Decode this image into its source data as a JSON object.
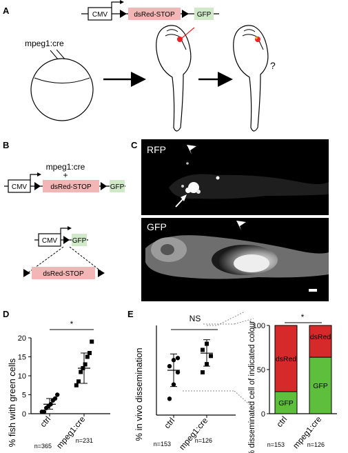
{
  "panel_labels": {
    "a": "A",
    "b": "B",
    "c": "C",
    "d": "D",
    "e": "E"
  },
  "panel_a": {
    "construct": {
      "promoter": "CMV",
      "stop": "dsRed-STOP",
      "reporter": "GFP"
    },
    "injection_label": "mpeg1:cre",
    "question_mark": "?"
  },
  "panel_b": {
    "injection_label": "mpeg1:cre",
    "plus": "+",
    "construct_before": {
      "promoter": "CMV",
      "stop": "dsRed-STOP",
      "reporter": "GFP"
    },
    "construct_after": {
      "promoter": "CMV",
      "reporter": "GFP",
      "excised": "dsRed-STOP"
    }
  },
  "panel_c": {
    "top_channel": "RFP",
    "bottom_channel": "GFP"
  },
  "chart_data": [
    {
      "type": "scatter",
      "panel": "D",
      "ylabel": "% fish with green cells",
      "yticks": [
        "0",
        "5",
        "10",
        "15",
        "20"
      ],
      "ylim": [
        0,
        20
      ],
      "categories": [
        "ctrl",
        "mpeg1:cre"
      ],
      "n_labels": [
        "n=365",
        "n=231"
      ],
      "significance": "*",
      "series": [
        {
          "values": [
            0.5,
            0.5,
            1.5,
            2.0,
            2.5,
            3.5,
            4.0,
            5.0
          ]
        },
        {
          "values": [
            7.5,
            8.5,
            11.0,
            12.0,
            13.0,
            15.0,
            16.0,
            19.0
          ]
        }
      ],
      "means": [
        2.5,
        12.0
      ],
      "errors": [
        [
          1.2,
          4.0
        ],
        [
          8.0,
          16.0
        ]
      ]
    },
    {
      "type": "scatter",
      "panel": "E",
      "ylabel": "% in vivo dissemination",
      "categories": [
        "ctrl",
        "mpeg1:cre"
      ],
      "n_labels": [
        "n=153",
        "n=126"
      ],
      "significance": "NS",
      "series": [
        {
          "values": [
            4.0,
            7.5,
            10.5,
            12.0,
            13.5,
            14.0
          ]
        },
        {
          "values": [
            10.5,
            12.5,
            14.5,
            16.0,
            17.5
          ]
        }
      ],
      "means": [
        11.0,
        15.2
      ],
      "errors": [
        [
          7.0,
          15.0
        ],
        [
          12.0,
          18.5
        ]
      ]
    },
    {
      "type": "bar",
      "stacked": true,
      "panel": "E",
      "ylabel": "% disseminated cell of indicated colour",
      "yticks": [
        "0",
        "50",
        "100"
      ],
      "ylim": [
        0,
        100
      ],
      "categories": [
        "ctrl",
        "mpeg1:cre"
      ],
      "n_labels": [
        "n=153",
        "n=126"
      ],
      "significance": "*",
      "series": [
        {
          "name": "GFP",
          "values": [
            25,
            64
          ],
          "color": "#5dbf3b"
        },
        {
          "name": "dsRed",
          "values": [
            75,
            36
          ],
          "color": "#d62a2a"
        }
      ]
    }
  ]
}
